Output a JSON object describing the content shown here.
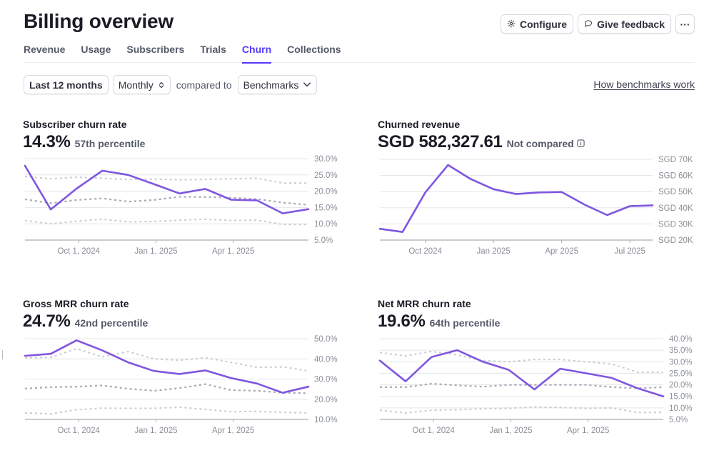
{
  "page": {
    "title": "Billing overview",
    "actions": {
      "configure": "Configure",
      "feedback": "Give feedback",
      "more": "···"
    },
    "tabs": [
      {
        "label": "Revenue",
        "active": false
      },
      {
        "label": "Usage",
        "active": false
      },
      {
        "label": "Subscribers",
        "active": false
      },
      {
        "label": "Trials",
        "active": false
      },
      {
        "label": "Churn",
        "active": true
      },
      {
        "label": "Collections",
        "active": false
      }
    ],
    "filters": {
      "range": "Last 12 months",
      "interval": "Monthly",
      "compared_to_label": "compared to",
      "comparison": "Benchmarks"
    },
    "benchmarks_link": "How benchmarks work",
    "colors": {
      "accent": "#533afd",
      "series": "#7f56e0",
      "benchmark_mid": "#a7a9b3",
      "benchmark_outer": "#c9cbd2",
      "grid": "#e3e5ea"
    }
  },
  "chart_data": [
    {
      "id": "subscriber-churn",
      "type": "line",
      "title": "Subscriber churn rate",
      "headline": "14.3%",
      "subtext": "57th percentile",
      "ylim": [
        5,
        30
      ],
      "yticks": [
        "30.0%",
        "25.0%",
        "20.0%",
        "15.0%",
        "10.0%",
        "5.0%"
      ],
      "ytick_values": [
        30,
        25,
        20,
        15,
        10,
        5
      ],
      "xticks": [
        {
          "label": "Oct 1, 2024",
          "index": 2
        },
        {
          "label": "Jan 1, 2025",
          "index": 5
        },
        {
          "label": "Apr 1, 2025",
          "index": 8
        }
      ],
      "n_points": 12,
      "series": [
        {
          "name": "Subscriber churn rate",
          "style": "solid",
          "values": [
            27.8,
            14.4,
            20.8,
            26.3,
            25.0,
            22.2,
            19.3,
            20.7,
            17.4,
            17.2,
            13.2,
            14.5
          ]
        },
        {
          "name": "Benchmark upper",
          "style": "dotted",
          "values": [
            24.5,
            23.8,
            24.3,
            24.0,
            23.6,
            23.7,
            23.5,
            23.6,
            23.8,
            24.0,
            22.5,
            22.5
          ]
        },
        {
          "name": "Benchmark median",
          "style": "dashed",
          "values": [
            17.5,
            16.3,
            17.3,
            17.8,
            16.8,
            17.3,
            18.3,
            18.2,
            18.0,
            17.6,
            16.5,
            15.8
          ]
        },
        {
          "name": "Benchmark lower",
          "style": "dotted",
          "values": [
            11.0,
            10.0,
            10.8,
            11.4,
            10.6,
            10.7,
            11.1,
            11.4,
            11.0,
            11.1,
            9.8,
            9.8
          ]
        }
      ],
      "grid": true
    },
    {
      "id": "churned-revenue",
      "type": "line",
      "title": "Churned revenue",
      "headline": "SGD 582,327.61",
      "subtext": "Not compared",
      "ylim": [
        20,
        70
      ],
      "yticks": [
        "SGD 70K",
        "SGD 60K",
        "SGD 50K",
        "SGD 40K",
        "SGD 30K",
        "SGD 20K"
      ],
      "ytick_values": [
        70,
        60,
        50,
        40,
        30,
        20
      ],
      "xticks": [
        {
          "label": "Oct 2024",
          "index": 2
        },
        {
          "label": "Jan 2025",
          "index": 5
        },
        {
          "label": "Apr 2025",
          "index": 8
        },
        {
          "label": "Jul 2025",
          "index": 11
        }
      ],
      "n_points": 13,
      "series": [
        {
          "name": "Churned revenue (SGD K)",
          "style": "solid",
          "values": [
            27.0,
            25.0,
            49.5,
            66.5,
            57.8,
            51.5,
            48.5,
            49.5,
            49.8,
            42.0,
            35.5,
            41.0,
            41.5
          ]
        }
      ],
      "grid": true
    },
    {
      "id": "gross-mrr-churn",
      "type": "line",
      "title": "Gross MRR churn rate",
      "headline": "24.7%",
      "subtext": "42nd percentile",
      "ylim": [
        10,
        50
      ],
      "yticks": [
        "50.0%",
        "40.0%",
        "30.0%",
        "20.0%",
        "10.0%"
      ],
      "ytick_values": [
        50,
        40,
        30,
        20,
        10
      ],
      "xticks": [
        {
          "label": "Oct 1, 2024",
          "index": 2
        },
        {
          "label": "Jan 1, 2025",
          "index": 5
        },
        {
          "label": "Apr 1, 2025",
          "index": 8
        }
      ],
      "n_points": 12,
      "series": [
        {
          "name": "Gross MRR churn rate",
          "style": "solid",
          "values": [
            41.5,
            42.5,
            49.2,
            44.2,
            38.3,
            34.0,
            32.5,
            34.3,
            30.5,
            27.8,
            23.2,
            26.2
          ]
        },
        {
          "name": "Benchmark upper",
          "style": "dotted",
          "values": [
            40.5,
            40.8,
            45.0,
            41.0,
            43.6,
            40.0,
            39.3,
            40.5,
            38.3,
            35.8,
            36.0,
            34.0
          ]
        },
        {
          "name": "Benchmark median",
          "style": "dashed",
          "values": [
            25.3,
            26.0,
            26.2,
            26.8,
            25.2,
            24.2,
            25.5,
            27.5,
            24.5,
            24.2,
            23.2,
            23.0
          ]
        },
        {
          "name": "Benchmark lower",
          "style": "dotted",
          "values": [
            13.2,
            12.8,
            14.8,
            15.6,
            15.5,
            15.5,
            16.0,
            15.0,
            13.8,
            14.0,
            13.5,
            13.2
          ]
        }
      ],
      "grid": true
    },
    {
      "id": "net-mrr-churn",
      "type": "line",
      "title": "Net MRR churn rate",
      "headline": "19.6%",
      "subtext": "64th percentile",
      "ylim": [
        5,
        40
      ],
      "yticks": [
        "40.0%",
        "35.0%",
        "30.0%",
        "25.0%",
        "20.0%",
        "15.0%",
        "10.0%",
        "5.0%"
      ],
      "ytick_values": [
        40,
        35,
        30,
        25,
        20,
        15,
        10,
        5
      ],
      "xticks": [
        {
          "label": "Oct 1, 2024",
          "index": 2
        },
        {
          "label": "Jan 1, 2025",
          "index": 5
        },
        {
          "label": "Apr 1, 2025",
          "index": 8
        }
      ],
      "n_points": 12,
      "series": [
        {
          "name": "Net MRR churn rate",
          "style": "solid",
          "values": [
            30.5,
            21.5,
            32.0,
            35.0,
            30.0,
            26.5,
            18.0,
            27.0,
            25.0,
            23.0,
            18.5,
            15.0
          ]
        },
        {
          "name": "Benchmark upper",
          "style": "dotted",
          "values": [
            34.0,
            32.5,
            34.5,
            33.0,
            30.5,
            30.0,
            31.0,
            31.0,
            30.0,
            29.0,
            25.5,
            25.5
          ]
        },
        {
          "name": "Benchmark median",
          "style": "dashed",
          "values": [
            19.0,
            19.0,
            20.5,
            19.8,
            19.2,
            20.0,
            20.0,
            20.0,
            20.0,
            19.0,
            18.5,
            19.0
          ]
        },
        {
          "name": "Benchmark lower",
          "style": "dotted",
          "values": [
            9.0,
            7.8,
            9.0,
            9.2,
            9.6,
            9.8,
            10.4,
            10.2,
            9.8,
            10.0,
            8.0,
            8.0
          ]
        }
      ],
      "grid": true
    }
  ]
}
